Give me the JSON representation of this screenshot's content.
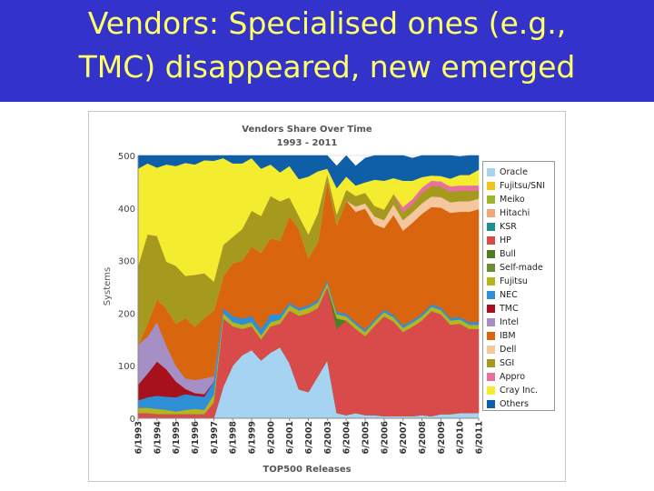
{
  "slide": {
    "title_line_1": "Vendors: Specialised ones (e.g.,",
    "title_line_2": "TMC) disappeared, new emerged",
    "header_color": "#3333cc",
    "title_color": "#ffff66"
  },
  "chart_data": {
    "type": "area",
    "stacked": true,
    "title": "Vendors Share Over Time",
    "subtitle": "1993 - 2011",
    "xlabel": "TOP500 Releases",
    "ylabel": "Systems",
    "ylim": [
      0,
      500
    ],
    "yticks": [
      0,
      100,
      200,
      300,
      400,
      500
    ],
    "legend_placement": "right",
    "categories": [
      "6/1993",
      "11/1993",
      "6/1994",
      "11/1994",
      "6/1995",
      "11/1995",
      "6/1996",
      "11/1996",
      "6/1997",
      "11/1997",
      "6/1998",
      "11/1998",
      "6/1999",
      "11/1999",
      "6/2000",
      "11/2000",
      "6/2001",
      "11/2001",
      "6/2002",
      "11/2002",
      "6/2003",
      "11/2003",
      "6/2004",
      "11/2004",
      "6/2005",
      "11/2005",
      "6/2006",
      "11/2006",
      "6/2007",
      "11/2007",
      "6/2008",
      "11/2008",
      "6/2009",
      "11/2009",
      "6/2010",
      "11/2010",
      "6/2011"
    ],
    "tick_labels": [
      "6/1993",
      "6/1994",
      "6/1995",
      "6/1996",
      "6/1997",
      "6/1998",
      "6/1999",
      "6/2000",
      "6/2001",
      "6/2002",
      "6/2003",
      "6/2004",
      "6/2005",
      "6/2006",
      "6/2007",
      "6/2008",
      "6/2009",
      "6/2010",
      "6/2011"
    ],
    "series": [
      {
        "name": "Oracle",
        "color": "#a7d3f2",
        "values": [
          0,
          0,
          0,
          0,
          0,
          0,
          0,
          0,
          0,
          60,
          100,
          120,
          130,
          110,
          125,
          135,
          105,
          55,
          50,
          80,
          110,
          10,
          6,
          10,
          6,
          6,
          4,
          4,
          4,
          4,
          6,
          4,
          8,
          8,
          10,
          10,
          10
        ]
      },
      {
        "name": "Fujitsu/SNI",
        "color": "#f0c419",
        "values": [
          0,
          0,
          0,
          0,
          0,
          0,
          0,
          0,
          0,
          0,
          0,
          0,
          0,
          0,
          0,
          0,
          0,
          0,
          0,
          0,
          0,
          0,
          0,
          0,
          0,
          0,
          0,
          0,
          0,
          0,
          0,
          0,
          0,
          0,
          0,
          0,
          0
        ]
      },
      {
        "name": "Meiko",
        "color": "#9db52c",
        "values": [
          0,
          0,
          0,
          0,
          0,
          0,
          0,
          0,
          0,
          0,
          0,
          0,
          0,
          0,
          0,
          0,
          0,
          0,
          0,
          0,
          0,
          0,
          0,
          0,
          0,
          0,
          0,
          0,
          0,
          0,
          0,
          0,
          0,
          0,
          0,
          0,
          0
        ]
      },
      {
        "name": "Hitachi",
        "color": "#f3a57a",
        "values": [
          0,
          0,
          0,
          0,
          0,
          0,
          0,
          0,
          0,
          0,
          0,
          0,
          0,
          0,
          0,
          0,
          0,
          0,
          0,
          0,
          0,
          0,
          0,
          0,
          0,
          0,
          0,
          0,
          0,
          0,
          0,
          0,
          0,
          0,
          0,
          0,
          0
        ]
      },
      {
        "name": "KSR",
        "color": "#1e8f8f",
        "values": [
          0,
          0,
          0,
          0,
          0,
          0,
          0,
          0,
          0,
          0,
          0,
          0,
          0,
          0,
          0,
          0,
          0,
          0,
          0,
          0,
          0,
          0,
          0,
          0,
          0,
          0,
          0,
          0,
          0,
          0,
          0,
          0,
          0,
          0,
          0,
          0,
          0
        ]
      },
      {
        "name": "HP",
        "color": "#d94a4a",
        "values": [
          10,
          10,
          8,
          8,
          8,
          8,
          8,
          8,
          30,
          130,
          75,
          50,
          45,
          40,
          50,
          45,
          100,
          140,
          150,
          130,
          140,
          160,
          180,
          160,
          150,
          170,
          190,
          180,
          160,
          170,
          180,
          200,
          190,
          170,
          170,
          160,
          160
        ]
      },
      {
        "name": "Bull",
        "color": "#4f7d22",
        "values": [
          0,
          0,
          0,
          0,
          0,
          0,
          0,
          0,
          0,
          0,
          0,
          0,
          0,
          0,
          0,
          0,
          0,
          0,
          0,
          0,
          0,
          20,
          0,
          0,
          0,
          0,
          0,
          0,
          0,
          0,
          0,
          0,
          0,
          0,
          0,
          0,
          0
        ]
      },
      {
        "name": "Self-made",
        "color": "#6d8c2f",
        "values": [
          0,
          0,
          0,
          0,
          0,
          0,
          0,
          0,
          0,
          0,
          0,
          0,
          0,
          0,
          0,
          0,
          0,
          0,
          0,
          0,
          0,
          0,
          0,
          0,
          0,
          0,
          0,
          0,
          0,
          0,
          0,
          0,
          0,
          0,
          0,
          0,
          0
        ]
      },
      {
        "name": "Fujitsu",
        "color": "#b4b521",
        "values": [
          10,
          10,
          10,
          8,
          5,
          8,
          10,
          8,
          15,
          10,
          8,
          8,
          8,
          8,
          8,
          8,
          10,
          10,
          10,
          10,
          8,
          8,
          8,
          8,
          8,
          8,
          8,
          8,
          8,
          8,
          8,
          8,
          8,
          8,
          8,
          8,
          8
        ]
      },
      {
        "name": "NEC",
        "color": "#2f8fd6",
        "values": [
          14,
          20,
          25,
          25,
          27,
          30,
          25,
          25,
          25,
          10,
          12,
          12,
          12,
          12,
          15,
          10,
          5,
          5,
          5,
          5,
          5,
          5,
          5,
          5,
          5,
          5,
          5,
          5,
          5,
          5,
          5,
          5,
          5,
          5,
          5,
          5,
          5
        ]
      },
      {
        "name": "TMC",
        "color": "#a6111b",
        "values": [
          30,
          45,
          65,
          52,
          30,
          10,
          5,
          5,
          0,
          0,
          0,
          0,
          0,
          0,
          0,
          0,
          0,
          0,
          0,
          0,
          0,
          0,
          0,
          0,
          0,
          0,
          0,
          0,
          0,
          0,
          0,
          0,
          0,
          0,
          0,
          0,
          0
        ]
      },
      {
        "name": "Intel",
        "color": "#a58fc4",
        "values": [
          76,
          70,
          75,
          45,
          30,
          20,
          25,
          30,
          10,
          0,
          0,
          0,
          0,
          0,
          0,
          0,
          0,
          0,
          0,
          0,
          0,
          0,
          0,
          0,
          0,
          0,
          0,
          0,
          0,
          0,
          0,
          0,
          0,
          0,
          0,
          0,
          0
        ]
      },
      {
        "name": "IBM",
        "color": "#d9650f",
        "values": [
          0,
          25,
          44,
          70,
          80,
          115,
          100,
          115,
          125,
          60,
          100,
          110,
          132,
          145,
          145,
          140,
          165,
          150,
          90,
          110,
          190,
          165,
          215,
          210,
          230,
          180,
          155,
          190,
          180,
          185,
          190,
          185,
          190,
          200,
          200,
          210,
          215
        ]
      },
      {
        "name": "Dell",
        "color": "#f5c79e",
        "values": [
          0,
          0,
          0,
          0,
          0,
          0,
          0,
          0,
          0,
          0,
          0,
          0,
          0,
          0,
          0,
          0,
          0,
          0,
          0,
          0,
          0,
          0,
          0,
          10,
          10,
          15,
          15,
          20,
          20,
          20,
          20,
          20,
          20,
          20,
          20,
          20,
          20
        ]
      },
      {
        "name": "SGI",
        "color": "#a59a1e",
        "values": [
          150,
          170,
          120,
          90,
          110,
          80,
          100,
          85,
          55,
          60,
          50,
          60,
          68,
          70,
          80,
          75,
          35,
          25,
          45,
          55,
          12,
          20,
          21,
          20,
          20,
          20,
          20,
          20,
          15,
          15,
          20,
          20,
          20,
          20,
          20,
          20,
          15
        ]
      },
      {
        "name": "Appro",
        "color": "#e76fa1",
        "values": [
          0,
          0,
          0,
          0,
          0,
          0,
          0,
          0,
          0,
          0,
          0,
          0,
          0,
          0,
          0,
          0,
          0,
          0,
          0,
          0,
          0,
          0,
          0,
          0,
          0,
          0,
          0,
          0,
          10,
          10,
          10,
          10,
          10,
          10,
          10,
          10,
          10
        ]
      },
      {
        "name": "Cray Inc.",
        "color": "#f4ec2e",
        "values": [
          185,
          135,
          130,
          185,
          190,
          215,
          210,
          215,
          230,
          165,
          140,
          125,
          100,
          90,
          60,
          55,
          60,
          70,
          110,
          80,
          10,
          50,
          25,
          20,
          20,
          50,
          55,
          30,
          50,
          35,
          20,
          10,
          10,
          15,
          20,
          20,
          30
        ]
      },
      {
        "name": "Others",
        "color": "#0f5fa8",
        "values": [
          25,
          15,
          23,
          17,
          20,
          14,
          17,
          9,
          10,
          5,
          15,
          15,
          5,
          25,
          17,
          32,
          20,
          45,
          40,
          30,
          25,
          42,
          40,
          37,
          46,
          46,
          48,
          43,
          48,
          43,
          41,
          38,
          39,
          44,
          35,
          37,
          27
        ]
      }
    ]
  }
}
